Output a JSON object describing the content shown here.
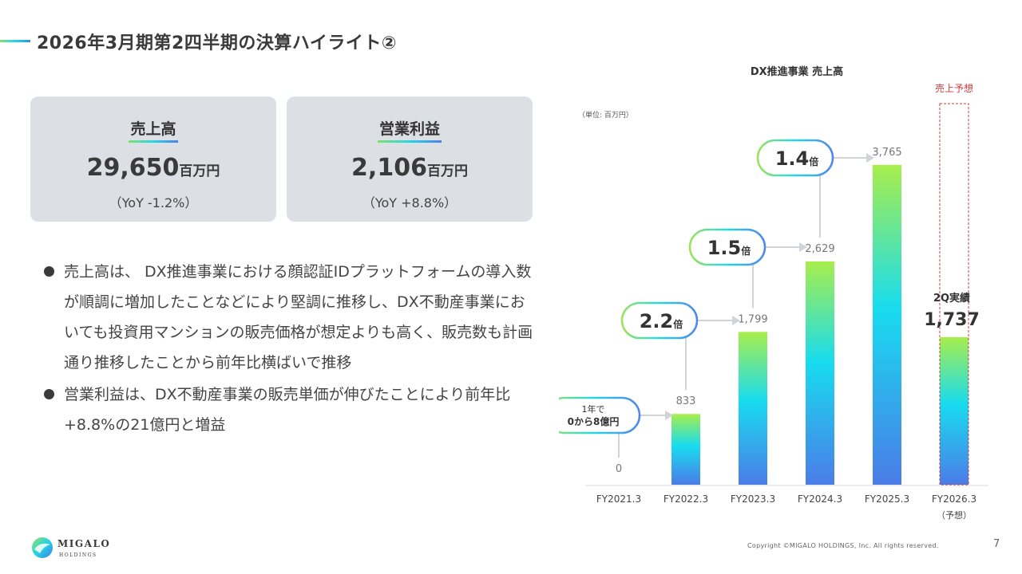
{
  "header": {
    "title": "2026年3月期第2四半期の決算ハイライト②"
  },
  "kpis": [
    {
      "label": "売上高",
      "value": "29,650",
      "unit": "百万円",
      "yoy": "（YoY -1.2%）"
    },
    {
      "label": "営業利益",
      "value": "2,106",
      "unit": "百万円",
      "yoy": "（YoY +8.8%）"
    }
  ],
  "bullets": [
    "売上高は、 DX推進事業における顔認証IDプラットフォームの導入数が順調に増加したことなどにより堅調に推移し、DX不動産事業においても投資用マンションの販売価格が想定よりも高く、販売数も計画通り推移したことから前年比横ばいで推移",
    "営業利益は、DX不動産事業の販売単価が伸びたことにより前年比+8.8%の21億円と増益"
  ],
  "chart_data": {
    "type": "bar",
    "title": "DX推進事業 売上高",
    "unit_note": "（単位: 百万円）",
    "categories": [
      "FY2021.3",
      "FY2022.3",
      "FY2023.3",
      "FY2024.3",
      "FY2025.3",
      "FY2026.3"
    ],
    "category_sublabels": [
      "",
      "",
      "",
      "",
      "",
      "（予想）"
    ],
    "values": [
      0,
      833,
      1799,
      2629,
      3765,
      1737
    ],
    "value_labels": [
      "0",
      "833",
      "1,799",
      "2,629",
      "3,765",
      ""
    ],
    "forecast": {
      "label": "売上予想",
      "category": "FY2026.3",
      "actual_label": "2Q実績",
      "actual_value": "1,737",
      "color": "#d23c3c"
    },
    "growth_callouts": [
      {
        "line1": "1年で",
        "line2": "0から8億円"
      },
      {
        "multiplier": "2.2",
        "suffix": "倍"
      },
      {
        "multiplier": "1.5",
        "suffix": "倍"
      },
      {
        "multiplier": "1.4",
        "suffix": "倍"
      }
    ],
    "bar_gradient": [
      "#a8ee4c",
      "#18dcef",
      "#4b7ce8"
    ],
    "grid": false,
    "legend": "none"
  },
  "footer": {
    "logo_name": "MIGALO",
    "logo_sub": "HOLDINGS",
    "copyright": "Copyright ©MIGALO HOLDINGS, Inc. All rights reserved.",
    "page": "7"
  }
}
